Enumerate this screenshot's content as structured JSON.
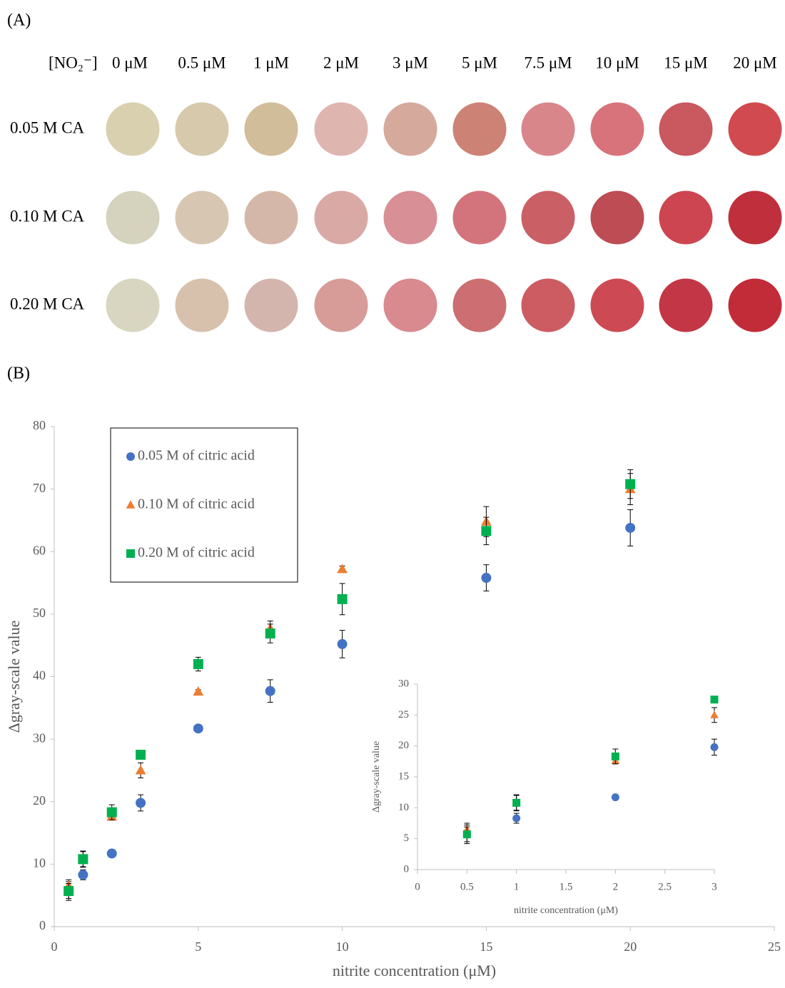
{
  "panel_a": {
    "label": "(A)",
    "header": "[NO₂⁻]",
    "concentrations": [
      "0 μM",
      "0.5 μM",
      "1 μM",
      "2 μM",
      "3 μM",
      "5 μM",
      "7.5 μM",
      "10 μM",
      "15 μM",
      "20 μM"
    ],
    "rows": [
      {
        "label": "0.05 M CA",
        "colors": [
          "#d9d0b0",
          "#d6c9ac",
          "#d2bd9a",
          "#dfb5b0",
          "#d5a99c",
          "#cc8274",
          "#d9868a",
          "#d8737b",
          "#c9585f",
          "#d04a50"
        ]
      },
      {
        "label": "0.10 M CA",
        "colors": [
          "#d5d3be",
          "#d7c7b2",
          "#d5b7a9",
          "#d9a9a6",
          "#d88f95",
          "#d3747c",
          "#cb5f66",
          "#bd4c55",
          "#cd4550",
          "#c02f3c"
        ]
      },
      {
        "label": "0.20 M CA",
        "colors": [
          "#d8d5c0",
          "#d7c1ac",
          "#d4b5ad",
          "#d79c98",
          "#d88a8e",
          "#cc6e72",
          "#cd5c62",
          "#cd4a54",
          "#c33645",
          "#c22b38"
        ]
      }
    ]
  },
  "panel_b_label": "(B)",
  "chart_data": [
    {
      "type": "scatter",
      "x_label": "nitrite concentration (μM)",
      "y_label": "Δgray-scale value",
      "xlim": [
        0,
        25
      ],
      "xticks": [
        0,
        5,
        10,
        15,
        20,
        25
      ],
      "ylim": [
        0,
        80
      ],
      "yticks": [
        0,
        10,
        20,
        30,
        40,
        50,
        60,
        70,
        80
      ],
      "legend": "upper left",
      "series": [
        {
          "name": "0.05 M of citric acid",
          "color": "#4472c4",
          "marker": "circle",
          "x": [
            0.5,
            1,
            2,
            3,
            5,
            7.5,
            10,
            15,
            20
          ],
          "values": [
            5.7,
            8.3,
            11.7,
            19.8,
            31.7,
            37.7,
            45.2,
            55.8,
            63.8
          ],
          "errors": [
            1.5,
            0.8,
            0.3,
            1.3,
            0.3,
            1.8,
            2.2,
            2.1,
            2.9
          ]
        },
        {
          "name": "0.10 M of citric acid",
          "color": "#ed7d31",
          "marker": "triangle",
          "x": [
            0.5,
            1,
            2,
            3,
            5,
            7.5,
            10,
            15,
            20
          ],
          "values": [
            6.5,
            10.8,
            17.6,
            25.0,
            37.6,
            47.7,
            57.2,
            64.8,
            70.0
          ],
          "errors": [
            1.0,
            1.3,
            0.5,
            1.2,
            0.3,
            1.2,
            0.5,
            2.4,
            2.5
          ]
        },
        {
          "name": "0.20 M of citric acid",
          "color": "#00b050",
          "marker": "square",
          "x": [
            0.5,
            1,
            2,
            3,
            5,
            7.5,
            10,
            15,
            20
          ],
          "values": [
            5.7,
            10.8,
            18.3,
            27.5,
            42.0,
            46.9,
            52.4,
            63.3,
            70.8
          ],
          "errors": [
            1.2,
            1.2,
            1.2,
            0.5,
            1.1,
            1.5,
            2.5,
            2.2,
            2.3
          ]
        }
      ]
    },
    {
      "type": "scatter",
      "x_label": "nitrite concentration (μM)",
      "y_label": "Δgray-scale value",
      "xlim": [
        0,
        3
      ],
      "xticks": [
        0,
        0.5,
        1,
        1.5,
        2,
        2.5,
        3
      ],
      "ylim": [
        0,
        30
      ],
      "yticks": [
        0,
        5,
        10,
        15,
        20,
        25,
        30
      ],
      "series": [
        {
          "color": "#4472c4",
          "marker": "circle",
          "x": [
            0.5,
            1,
            2,
            3
          ],
          "values": [
            5.7,
            8.3,
            11.7,
            19.8
          ],
          "errors": [
            1.5,
            0.8,
            0.3,
            1.3
          ]
        },
        {
          "color": "#ed7d31",
          "marker": "triangle",
          "x": [
            0.5,
            1,
            2,
            3
          ],
          "values": [
            6.5,
            10.8,
            17.6,
            25.0
          ],
          "errors": [
            1.0,
            1.3,
            0.5,
            1.2
          ]
        },
        {
          "color": "#00b050",
          "marker": "square",
          "x": [
            0.5,
            1,
            2,
            3
          ],
          "values": [
            5.7,
            10.8,
            18.3,
            27.5
          ],
          "errors": [
            1.2,
            1.2,
            1.2,
            0.5
          ]
        }
      ]
    }
  ]
}
